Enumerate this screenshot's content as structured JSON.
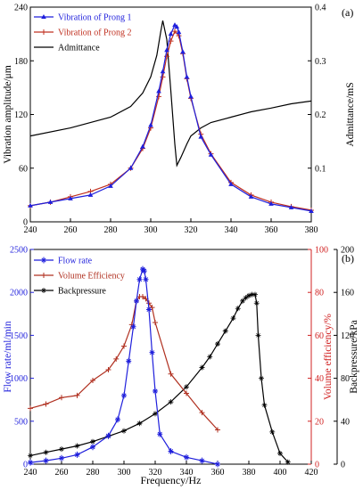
{
  "chart_data": [
    {
      "panel_label": "(a)",
      "type": "line",
      "xlabel": "",
      "ylabel_left": "Vibration amplitude/μm",
      "ylabel_right": "Admittance/mS",
      "xlim": [
        240,
        380
      ],
      "x_ticks": [
        240,
        260,
        280,
        300,
        320,
        340,
        360,
        380
      ],
      "ylim_left": [
        0,
        240
      ],
      "y_ticks_left": [
        0,
        60,
        120,
        180,
        240
      ],
      "ylim_right": [
        0,
        0.4
      ],
      "y_ticks_right": [
        0.1,
        0.2,
        0.3,
        0.4
      ],
      "legend_position": "top-left",
      "series": [
        {
          "name": "Vibration of Prong 1",
          "axis": "left",
          "color": "#1f1fdc",
          "marker": "triangle",
          "x": [
            240,
            250,
            260,
            270,
            280,
            290,
            296,
            300,
            304,
            306,
            308,
            310,
            312,
            313,
            314,
            316,
            318,
            320,
            325,
            330,
            340,
            350,
            360,
            370,
            380
          ],
          "y": [
            18,
            22,
            26,
            30,
            40,
            60,
            84,
            108,
            146,
            168,
            192,
            210,
            220,
            218,
            212,
            190,
            162,
            140,
            95,
            75,
            42,
            28,
            20,
            16,
            12
          ]
        },
        {
          "name": "Vibration of Prong 2",
          "axis": "left",
          "color": "#c03020",
          "marker": "plus",
          "x": [
            240,
            250,
            260,
            270,
            280,
            290,
            296,
            300,
            304,
            306,
            308,
            310,
            312,
            314,
            316,
            318,
            320,
            325,
            330,
            340,
            350,
            360,
            370,
            380
          ],
          "y": [
            18,
            22,
            28,
            34,
            42,
            60,
            82,
            105,
            140,
            162,
            185,
            202,
            213,
            208,
            188,
            160,
            138,
            98,
            76,
            44,
            30,
            22,
            17,
            13
          ]
        },
        {
          "name": "Admittance",
          "axis": "right",
          "color": "#000000",
          "marker": "none",
          "x": [
            240,
            260,
            280,
            290,
            296,
            300,
            303,
            305,
            306,
            308,
            310,
            312,
            313,
            315,
            318,
            320,
            325,
            330,
            340,
            350,
            360,
            370,
            380
          ],
          "y": [
            0.16,
            0.175,
            0.195,
            0.215,
            0.24,
            0.27,
            0.31,
            0.355,
            0.375,
            0.34,
            0.245,
            0.145,
            0.105,
            0.12,
            0.145,
            0.16,
            0.175,
            0.185,
            0.195,
            0.205,
            0.212,
            0.22,
            0.225
          ]
        }
      ]
    },
    {
      "panel_label": "(b)",
      "type": "line",
      "xlabel": "Frequency/Hz",
      "ylabel_left": "Flow rate/ml/min",
      "ylabel_right1": "Volume efficiency/%",
      "ylabel_right2": "Backpressure/kPa",
      "xlim": [
        240,
        420
      ],
      "x_ticks": [
        240,
        260,
        280,
        300,
        320,
        340,
        360,
        380,
        400,
        420
      ],
      "ylim_left": [
        0,
        2500
      ],
      "y_ticks_left": [
        0,
        500,
        1000,
        1500,
        2000,
        2500
      ],
      "ylim_right1": [
        0,
        100
      ],
      "y_ticks_right1": [
        0,
        20,
        40,
        60,
        80,
        100
      ],
      "ylim_right2": [
        0,
        200
      ],
      "y_ticks_right2": [
        0,
        40,
        80,
        120,
        160,
        200
      ],
      "legend_position": "top-left",
      "series": [
        {
          "name": "Flow rate",
          "axis": "left",
          "color": "#1f1fdc",
          "marker": "star",
          "x": [
            240,
            250,
            260,
            270,
            280,
            290,
            296,
            300,
            303,
            306,
            308,
            310,
            312,
            313,
            314,
            316,
            318,
            320,
            323,
            330,
            340,
            350,
            360
          ],
          "y": [
            20,
            40,
            70,
            110,
            200,
            330,
            520,
            800,
            1200,
            1600,
            1900,
            2150,
            2270,
            2250,
            2150,
            1800,
            1300,
            850,
            350,
            150,
            80,
            40,
            0
          ]
        },
        {
          "name": "Volume Efficiency",
          "axis": "right1",
          "color": "#b03020",
          "marker": "plus",
          "x": [
            240,
            250,
            260,
            270,
            280,
            290,
            295,
            300,
            305,
            308,
            310,
            312,
            314,
            316,
            318,
            320,
            330,
            340,
            350,
            360
          ],
          "y": [
            26,
            28,
            31,
            32,
            39,
            44,
            49,
            55,
            65,
            76,
            78,
            78,
            77,
            75,
            73,
            66,
            42,
            33,
            24,
            16
          ]
        },
        {
          "name": "Backpressure",
          "axis": "right2",
          "color": "#000000",
          "marker": "cross",
          "x": [
            240,
            250,
            260,
            270,
            280,
            290,
            300,
            310,
            320,
            330,
            340,
            350,
            355,
            360,
            365,
            370,
            373,
            376,
            378,
            380,
            382,
            384,
            385,
            386,
            388,
            390,
            395,
            400,
            405
          ],
          "y": [
            8,
            11,
            14,
            17,
            21,
            26,
            31,
            38,
            47,
            58,
            72,
            90,
            100,
            112,
            124,
            136,
            145,
            152,
            155,
            157,
            158,
            158,
            150,
            120,
            80,
            55,
            30,
            10,
            2
          ]
        }
      ]
    }
  ]
}
